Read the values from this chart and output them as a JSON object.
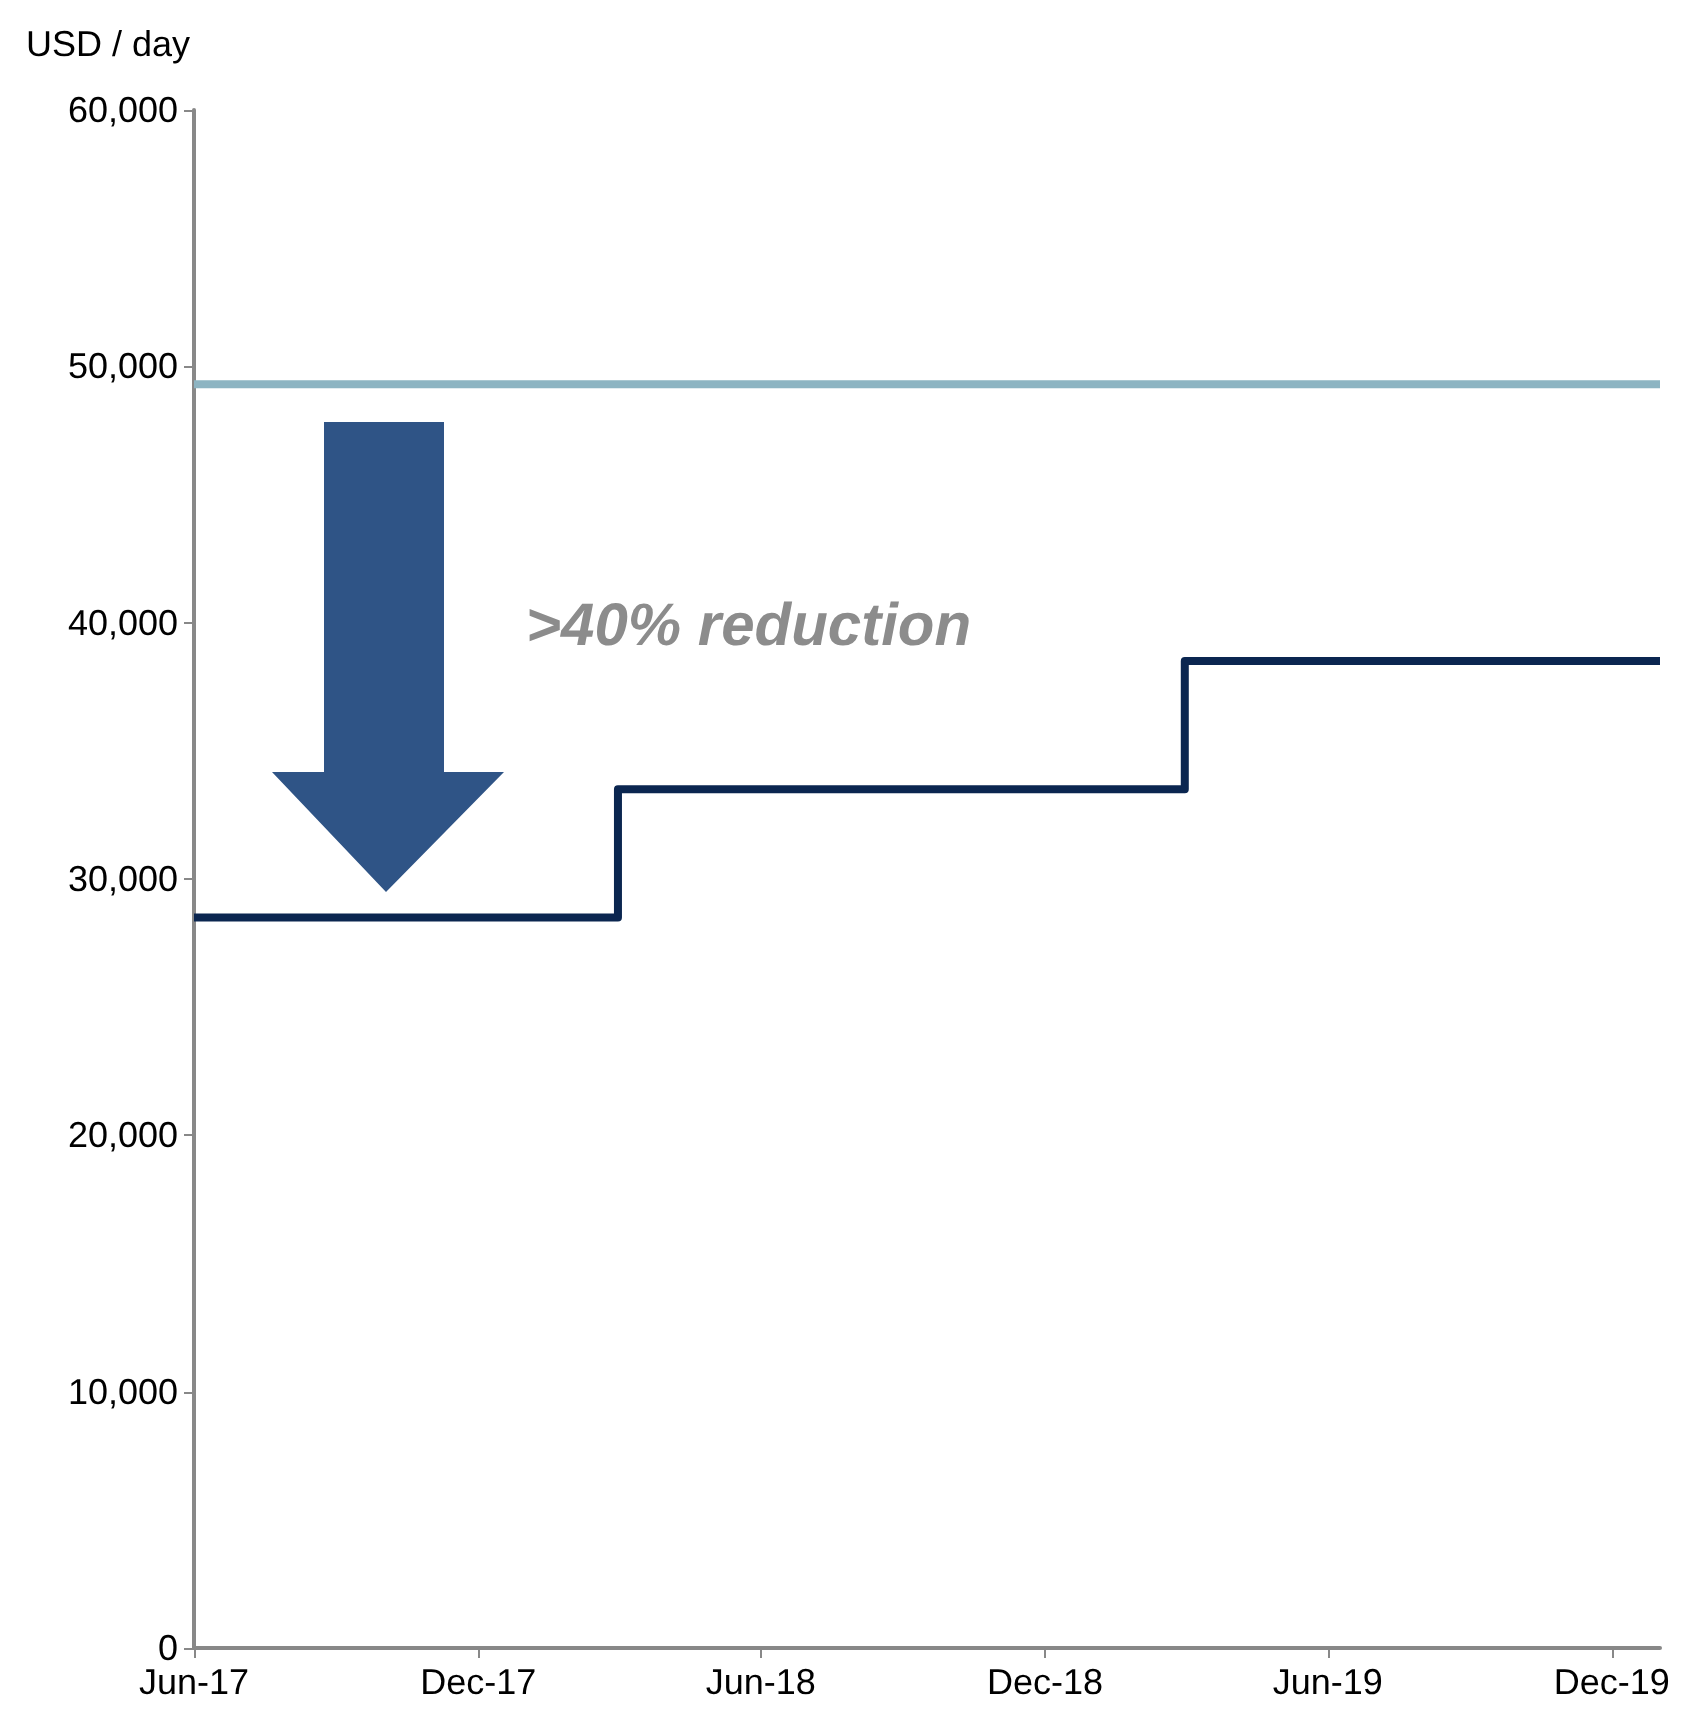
{
  "chart_data": {
    "type": "step",
    "ylabel": "USD / day",
    "annotations": [
      ">40% reduction"
    ],
    "series": [
      {
        "type": "line",
        "color": "#8db4c2",
        "x": [
          "2017-06",
          "2020-01"
        ],
        "values": [
          49300,
          49300
        ]
      },
      {
        "color": "#0b2650",
        "x": [
          "2017-06",
          "2018-03",
          "2019-03",
          "2020-01"
        ],
        "values": [
          28500,
          33500,
          38500,
          38500
        ]
      }
    ],
    "xlim": [
      "2017-06",
      "2020-01"
    ],
    "xticks": [
      {
        "value": "2017-06",
        "label": "Jun-17"
      },
      {
        "value": "2017-12",
        "label": "Dec-17"
      },
      {
        "value": "2018-06",
        "label": "Jun-18"
      },
      {
        "value": "2018-12",
        "label": "Dec-18"
      },
      {
        "value": "2019-06",
        "label": "Jun-19"
      },
      {
        "value": "2019-12",
        "label": "Dec-19"
      }
    ],
    "ylim": [
      0,
      60000
    ],
    "yticks": [
      0,
      {
        "value": 10000,
        "label": "10,000"
      },
      {
        "value": 20000,
        "label": "20,000"
      },
      {
        "value": 30000,
        "label": "30,000"
      },
      {
        "value": 40000,
        "label": "40,000"
      },
      {
        "value": 50000,
        "label": "50,000"
      },
      {
        "value": 60000,
        "label": "60,000"
      }
    ],
    "grid": false,
    "marker": "none",
    "line_style": "solid"
  }
}
